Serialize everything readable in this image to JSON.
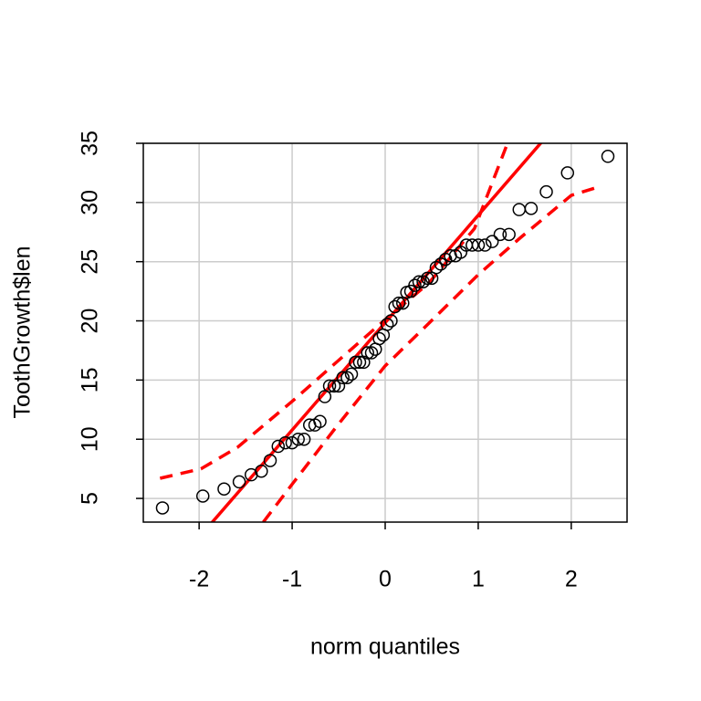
{
  "chart_data": {
    "type": "qqplot",
    "xlabel": "norm quantiles",
    "ylabel": "ToothGrowth$len",
    "xlim": [
      -2.6,
      2.6
    ],
    "ylim": [
      3,
      35
    ],
    "xticks": [
      -2,
      -1,
      0,
      1,
      2
    ],
    "yticks": [
      5,
      10,
      15,
      20,
      25,
      30,
      35
    ],
    "grid": true,
    "color": "#000000",
    "x": [
      -2.394,
      -1.96,
      -1.732,
      -1.569,
      -1.44,
      -1.331,
      -1.236,
      -1.15,
      -1.073,
      -1.001,
      -0.935,
      -0.872,
      -0.812,
      -0.755,
      -0.701,
      -0.649,
      -0.598,
      -0.549,
      -0.501,
      -0.454,
      -0.408,
      -0.363,
      -0.319,
      -0.275,
      -0.232,
      -0.189,
      -0.147,
      -0.105,
      -0.063,
      -0.021,
      0.021,
      0.063,
      0.105,
      0.147,
      0.189,
      0.232,
      0.275,
      0.319,
      0.363,
      0.408,
      0.454,
      0.501,
      0.549,
      0.598,
      0.649,
      0.701,
      0.755,
      0.812,
      0.872,
      0.935,
      1.001,
      1.073,
      1.15,
      1.236,
      1.331,
      1.44,
      1.569,
      1.732,
      1.96,
      2.394
    ],
    "values": [
      4.2,
      5.2,
      5.8,
      6.4,
      7.0,
      7.3,
      8.2,
      9.4,
      9.7,
      9.7,
      10.0,
      10.0,
      11.2,
      11.2,
      11.5,
      13.6,
      14.5,
      14.5,
      14.5,
      15.2,
      15.2,
      15.5,
      16.5,
      16.5,
      16.5,
      17.3,
      17.3,
      17.6,
      18.5,
      18.8,
      19.7,
      20.0,
      21.2,
      21.5,
      21.5,
      22.4,
      22.5,
      23.0,
      23.3,
      23.3,
      23.6,
      23.6,
      24.5,
      24.8,
      25.2,
      25.5,
      25.5,
      25.8,
      26.4,
      26.4,
      26.4,
      26.4,
      26.7,
      27.3,
      27.3,
      29.4,
      29.5,
      30.9,
      32.5,
      33.9
    ],
    "reference_line": {
      "color": "#ff0000",
      "x": [
        -2,
        2
      ],
      "values": [
        1.71,
        37.99
      ]
    },
    "confidence_bands": [
      {
        "color": "#ff0000",
        "x": [
          -2.42,
          -1.98,
          -1.59,
          -1.0,
          -0.51,
          0,
          0.47,
          0.96,
          1.3
        ],
        "values": [
          6.7,
          7.5,
          9.3,
          13.2,
          16.6,
          20.1,
          23.2,
          27.8,
          34.7
        ]
      },
      {
        "color": "#ff0000",
        "x": [
          -1.31,
          -1.0,
          -0.51,
          0,
          0.47,
          1.0,
          1.45,
          2.0,
          2.33
        ],
        "values": [
          3.0,
          6.2,
          11.2,
          16.2,
          19.8,
          23.9,
          27.0,
          30.6,
          31.4
        ]
      }
    ]
  }
}
